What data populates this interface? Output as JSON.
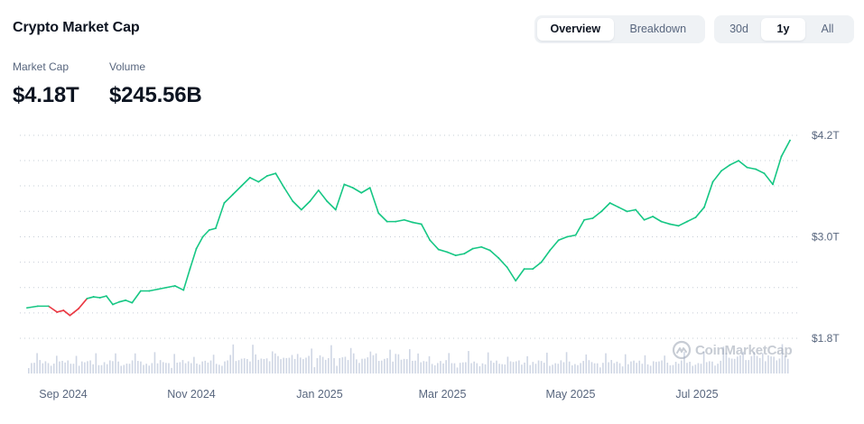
{
  "header": {
    "title": "Crypto Market Cap"
  },
  "view_tabs": [
    {
      "label": "Overview",
      "active": true
    },
    {
      "label": "Breakdown",
      "active": false
    }
  ],
  "range_tabs": [
    {
      "label": "30d",
      "active": false
    },
    {
      "label": "1y",
      "active": true
    },
    {
      "label": "All",
      "active": false
    }
  ],
  "metrics": {
    "market_cap": {
      "label": "Market Cap",
      "value": "$4.18T"
    },
    "volume": {
      "label": "Volume",
      "value": "$245.56B"
    }
  },
  "watermark": {
    "text": "CoinMarketCap",
    "icon": "coinmarketcap-logo-icon"
  },
  "colors": {
    "up": "#16c784",
    "down": "#ea3943",
    "volume": "#cfd6e4",
    "grid": "#c6ccd6",
    "text": "#0d1421",
    "muted": "#58667e"
  },
  "chart_data": {
    "type": "line",
    "title": "",
    "xlabel": "",
    "ylabel": "",
    "x_tick_labels": [
      "Sep 2024",
      "Nov 2024",
      "Jan 2025",
      "Mar 2025",
      "May 2025",
      "Jul 2025"
    ],
    "y_tick_labels": [
      "$4.2T",
      "$3.0T",
      "$1.8T"
    ],
    "y_ticks": [
      4.2,
      3.0,
      1.8
    ],
    "ylim": [
      1.8,
      4.2
    ],
    "unit": "trillion USD",
    "grid": true,
    "color_rule": "red while below the first value, green above",
    "series": [
      {
        "x": [
          "2024-08-22",
          "2024-08-27",
          "2024-09-01",
          "2024-09-05",
          "2024-09-08",
          "2024-09-11",
          "2024-09-15",
          "2024-09-19",
          "2024-09-22",
          "2024-09-25",
          "2024-09-28",
          "2024-10-01",
          "2024-10-04",
          "2024-10-07",
          "2024-10-10",
          "2024-10-14",
          "2024-10-18",
          "2024-10-22",
          "2024-10-26",
          "2024-10-30",
          "2024-11-03",
          "2024-11-06",
          "2024-11-09",
          "2024-11-12",
          "2024-11-15",
          "2024-11-18",
          "2024-11-22",
          "2024-11-26",
          "2024-11-30",
          "2024-12-04",
          "2024-12-08",
          "2024-12-12",
          "2024-12-16",
          "2024-12-20",
          "2024-12-24",
          "2024-12-28",
          "2025-01-01",
          "2025-01-05",
          "2025-01-09",
          "2025-01-13",
          "2025-01-17",
          "2025-01-21",
          "2025-01-25",
          "2025-01-29",
          "2025-02-02",
          "2025-02-06",
          "2025-02-10",
          "2025-02-14",
          "2025-02-18",
          "2025-02-22",
          "2025-02-26",
          "2025-03-02",
          "2025-03-06",
          "2025-03-10",
          "2025-03-14",
          "2025-03-18",
          "2025-03-22",
          "2025-03-26",
          "2025-03-30",
          "2025-04-03",
          "2025-04-07",
          "2025-04-11",
          "2025-04-15",
          "2025-04-19",
          "2025-04-23",
          "2025-04-27",
          "2025-05-01",
          "2025-05-05",
          "2025-05-09",
          "2025-05-13",
          "2025-05-17",
          "2025-05-21",
          "2025-05-25",
          "2025-05-29",
          "2025-06-02",
          "2025-06-06",
          "2025-06-10",
          "2025-06-14",
          "2025-06-18",
          "2025-06-22",
          "2025-06-26",
          "2025-06-30",
          "2025-07-04",
          "2025-07-08",
          "2025-07-12",
          "2025-07-16",
          "2025-07-20",
          "2025-07-24",
          "2025-07-28",
          "2025-08-01",
          "2025-08-05",
          "2025-08-09",
          "2025-08-13"
        ],
        "y": [
          2.16,
          2.18,
          2.18,
          2.11,
          2.13,
          2.07,
          2.15,
          2.27,
          2.29,
          2.28,
          2.3,
          2.2,
          2.23,
          2.25,
          2.22,
          2.36,
          2.36,
          2.38,
          2.4,
          2.42,
          2.37,
          2.62,
          2.86,
          3.0,
          3.08,
          3.1,
          3.4,
          3.5,
          3.6,
          3.7,
          3.65,
          3.72,
          3.75,
          3.58,
          3.42,
          3.32,
          3.42,
          3.55,
          3.42,
          3.32,
          3.62,
          3.58,
          3.52,
          3.58,
          3.28,
          3.18,
          3.18,
          3.2,
          3.17,
          3.15,
          2.96,
          2.85,
          2.82,
          2.78,
          2.8,
          2.86,
          2.88,
          2.84,
          2.75,
          2.64,
          2.48,
          2.62,
          2.62,
          2.7,
          2.84,
          2.96,
          3.0,
          3.02,
          3.2,
          3.22,
          3.3,
          3.4,
          3.35,
          3.3,
          3.32,
          3.2,
          3.24,
          3.18,
          3.15,
          3.13,
          3.18,
          3.23,
          3.35,
          3.65,
          3.78,
          3.85,
          3.9,
          3.82,
          3.8,
          3.75,
          3.62,
          3.95,
          4.14
        ]
      }
    ]
  }
}
